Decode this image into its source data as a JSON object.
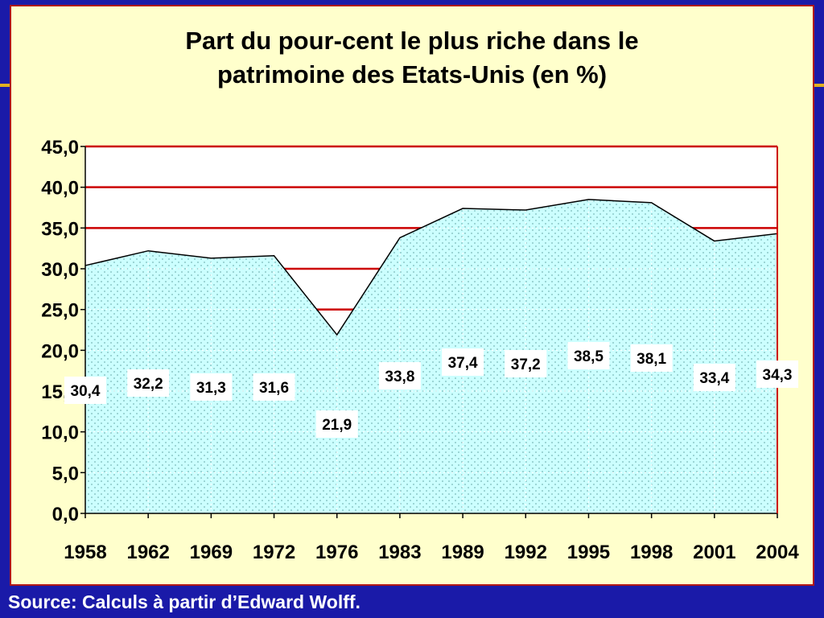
{
  "slide": {
    "title_line1": "Part du pour-cent le plus riche dans le",
    "title_line2": "patrimoine des Etats-Unis (en %)",
    "source": "Source: Calculs à partir d’Edward Wolff."
  },
  "colors": {
    "background": "#1a1aa8",
    "panel": "#ffffcc",
    "area_fill": "#ccffff",
    "gridline": "#cc0000",
    "plot_bg": "#ffffff"
  },
  "chart_data": {
    "type": "area",
    "categories": [
      "1958",
      "1962",
      "1969",
      "1972",
      "1976",
      "1983",
      "1989",
      "1992",
      "1995",
      "1998",
      "2001",
      "2004"
    ],
    "values": [
      30.4,
      32.2,
      31.3,
      31.6,
      21.9,
      33.8,
      37.4,
      37.2,
      38.5,
      38.1,
      33.4,
      34.3
    ],
    "value_labels": [
      "30,4",
      "32,2",
      "31,3",
      "31,6",
      "21,9",
      "33,8",
      "37,4",
      "37,2",
      "38,5",
      "38,1",
      "33,4",
      "34,3"
    ],
    "y_ticks": [
      "0,0",
      "5,0",
      "10,0",
      "15,0",
      "20,0",
      "25,0",
      "30,0",
      "35,0",
      "40,0",
      "45,0"
    ],
    "ylim": [
      0,
      45
    ],
    "grid": true,
    "legend": "none"
  }
}
